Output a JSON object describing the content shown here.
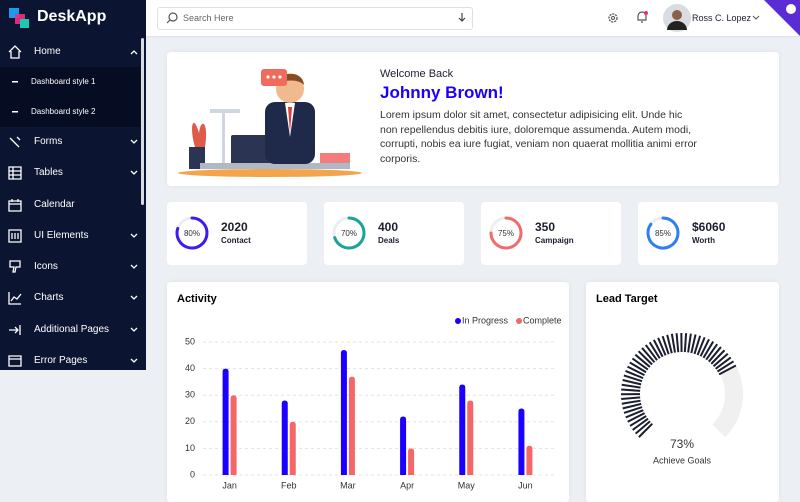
{
  "sidebar": {
    "brand": "DeskApp",
    "menu": [
      {
        "label": "Home",
        "children": [
          "Dashboard style 1",
          "Dashboard style 2"
        ]
      },
      {
        "label": "Forms"
      },
      {
        "label": "Tables"
      },
      {
        "label": "Calendar"
      },
      {
        "label": "UI Elements"
      },
      {
        "label": "Icons"
      },
      {
        "label": "Charts"
      },
      {
        "label": "Additional Pages"
      },
      {
        "label": "Error Pages"
      }
    ]
  },
  "header": {
    "search_placeholder": "Search Here",
    "user": "Ross C. Lopez"
  },
  "welcome": {
    "greeting": "Welcome Back",
    "name": "Johnny Brown!",
    "text": "Lorem ipsum dolor sit amet, consectetur adipisicing elit. Unde hic non repellendus debitis iure, doloremque assumenda. Autem modi, corrupti, nobis ea iure fugiat, veniam non quaerat mollitia animi error corporis."
  },
  "stats": [
    {
      "value": "2020",
      "label": "Contact",
      "percent": 80,
      "percent_label": "80%",
      "color": "#3d1cf0"
    },
    {
      "value": "400",
      "label": "Deals",
      "percent": 70,
      "percent_label": "70%",
      "color": "#1aa39a"
    },
    {
      "value": "350",
      "label": "Campaign",
      "percent": 75,
      "percent_label": "75%",
      "color": "#f06b6b"
    },
    {
      "value": "$6060",
      "label": "Worth",
      "percent": 85,
      "percent_label": "85%",
      "color": "#2f7ef5"
    }
  ],
  "chart_data": [
    {
      "type": "bar",
      "title": "Activity",
      "categories": [
        "Jan",
        "Feb",
        "Mar",
        "Apr",
        "May",
        "Jun"
      ],
      "series": [
        {
          "name": "In Progress",
          "color": "#1b00ff",
          "values": [
            40,
            28,
            47,
            22,
            34,
            25
          ]
        },
        {
          "name": "Complete",
          "color": "#f56767",
          "values": [
            30,
            20,
            37,
            10,
            28,
            11
          ]
        }
      ],
      "ylim": [
        0,
        50
      ],
      "yticks": [
        0,
        10,
        20,
        30,
        40,
        50
      ],
      "grid": true
    },
    {
      "type": "gauge",
      "title": "Lead Target",
      "value": 73,
      "value_label": "73%",
      "label": "Achieve Goals",
      "color": "#1b1e2e"
    }
  ]
}
